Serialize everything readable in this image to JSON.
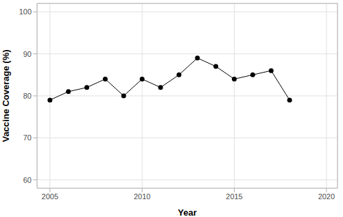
{
  "chart_data": {
    "type": "line",
    "x_label": "Year",
    "y_label": "Vaccine Coverage (%)",
    "x": [
      2005,
      2006,
      2007,
      2008,
      2009,
      2010,
      2011,
      2012,
      2013,
      2014,
      2015,
      2016,
      2017,
      2018
    ],
    "values": [
      79,
      81,
      82,
      84,
      80,
      84,
      82,
      85,
      89,
      87,
      84,
      85,
      86,
      79
    ],
    "color": "#000000",
    "marker": "circle",
    "xlim": [
      2004.3,
      2020.6
    ],
    "ylim": [
      58,
      102
    ],
    "xticks": [
      2005,
      2010,
      2015,
      2020
    ],
    "yticks": [
      60,
      70,
      80,
      90,
      100
    ],
    "grid": true
  }
}
